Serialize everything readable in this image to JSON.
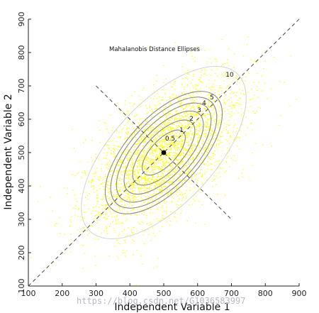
{
  "chart_data": {
    "type": "scatter",
    "title": "Mahalanobis Distance Ellipses",
    "xlabel": "Independent Variable 1",
    "ylabel": "Independent Variable 2",
    "xlim": [
      100,
      900
    ],
    "ylim": [
      100,
      900
    ],
    "x_ticks": [
      "100",
      "200",
      "300",
      "400",
      "500",
      "600",
      "700",
      "800",
      "900"
    ],
    "y_ticks": [
      "100",
      "200",
      "300",
      "400",
      "500",
      "600",
      "700",
      "800",
      "900"
    ],
    "grid": false,
    "center": {
      "x": 500,
      "y": 500
    },
    "point_color": "#ffff00",
    "ellipse_color": "#8a8a8a",
    "outer_ellipse_color": "#d4d4d4",
    "ellipse_levels": [
      "0.5",
      "1",
      "2",
      "3",
      "4",
      "5",
      "10"
    ],
    "major_axis_line": {
      "from": [
        100,
        100
      ],
      "to": [
        900,
        900
      ]
    },
    "minor_axis_line": {
      "from": [
        300,
        700
      ],
      "to": [
        700,
        300
      ]
    }
  },
  "watermark": "https://blog.csdn.net/G1036583997"
}
